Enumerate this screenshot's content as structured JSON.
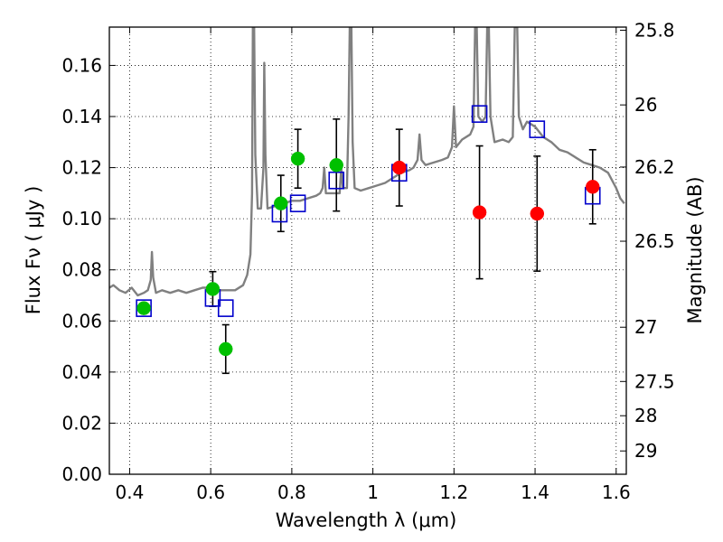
{
  "chart_data": {
    "type": "scatter",
    "title": "",
    "xlabel": "Wavelength  λ (μm)",
    "ylabel": "Flux  Fν  ( μJy )",
    "y2label": "Magnitude (AB)",
    "xlim": [
      0.35,
      1.625
    ],
    "ylim": [
      0.0,
      0.175
    ],
    "grid": true,
    "x_ticks": [
      {
        "value": 0.4,
        "label": "0.4"
      },
      {
        "value": 0.6,
        "label": "0.6"
      },
      {
        "value": 0.8,
        "label": "0.8"
      },
      {
        "value": 1.0,
        "label": "1"
      },
      {
        "value": 1.2,
        "label": "1.2"
      },
      {
        "value": 1.4,
        "label": "1.4"
      },
      {
        "value": 1.6,
        "label": "1.6"
      }
    ],
    "y_ticks": [
      {
        "value": 0.0,
        "label": "0.00"
      },
      {
        "value": 0.02,
        "label": "0.02"
      },
      {
        "value": 0.04,
        "label": "0.04"
      },
      {
        "value": 0.06,
        "label": "0.06"
      },
      {
        "value": 0.08,
        "label": "0.08"
      },
      {
        "value": 0.1,
        "label": "0.10"
      },
      {
        "value": 0.12,
        "label": "0.12"
      },
      {
        "value": 0.14,
        "label": "0.14"
      },
      {
        "value": 0.16,
        "label": "0.16"
      }
    ],
    "mag_ticks": [
      {
        "mag": 25.8,
        "label": "25.8"
      },
      {
        "mag": 26.0,
        "label": "26"
      },
      {
        "mag": 26.2,
        "label": "26.2"
      },
      {
        "mag": 26.5,
        "label": "26.5"
      },
      {
        "mag": 27.0,
        "label": "27"
      },
      {
        "mag": 27.5,
        "label": "27.5"
      },
      {
        "mag": 28.0,
        "label": "28"
      },
      {
        "mag": 29.0,
        "label": "29"
      }
    ],
    "series": [
      {
        "kind": "spectrum",
        "color": "#808080",
        "points": [
          [
            0.35,
            0.073
          ],
          [
            0.36,
            0.074
          ],
          [
            0.375,
            0.072
          ],
          [
            0.39,
            0.071
          ],
          [
            0.405,
            0.073
          ],
          [
            0.42,
            0.07
          ],
          [
            0.435,
            0.071
          ],
          [
            0.445,
            0.072
          ],
          [
            0.452,
            0.076
          ],
          [
            0.455,
            0.087
          ],
          [
            0.458,
            0.077
          ],
          [
            0.465,
            0.071
          ],
          [
            0.48,
            0.072
          ],
          [
            0.5,
            0.071
          ],
          [
            0.52,
            0.072
          ],
          [
            0.54,
            0.071
          ],
          [
            0.56,
            0.072
          ],
          [
            0.58,
            0.073
          ],
          [
            0.6,
            0.073
          ],
          [
            0.62,
            0.072
          ],
          [
            0.64,
            0.072
          ],
          [
            0.66,
            0.072
          ],
          [
            0.68,
            0.074
          ],
          [
            0.69,
            0.078
          ],
          [
            0.698,
            0.086
          ],
          [
            0.702,
            0.11
          ],
          [
            0.704,
            0.175
          ],
          [
            0.707,
            0.175
          ],
          [
            0.71,
            0.125
          ],
          [
            0.716,
            0.104
          ],
          [
            0.724,
            0.104
          ],
          [
            0.73,
            0.12
          ],
          [
            0.732,
            0.161
          ],
          [
            0.735,
            0.125
          ],
          [
            0.74,
            0.104
          ],
          [
            0.76,
            0.105
          ],
          [
            0.78,
            0.106
          ],
          [
            0.8,
            0.107
          ],
          [
            0.82,
            0.107
          ],
          [
            0.84,
            0.108
          ],
          [
            0.86,
            0.109
          ],
          [
            0.87,
            0.11
          ],
          [
            0.876,
            0.112
          ],
          [
            0.88,
            0.12
          ],
          [
            0.884,
            0.11
          ],
          [
            0.9,
            0.11
          ],
          [
            0.918,
            0.11
          ],
          [
            0.922,
            0.12
          ],
          [
            0.926,
            0.112
          ],
          [
            0.936,
            0.112
          ],
          [
            0.94,
            0.14
          ],
          [
            0.943,
            0.175
          ],
          [
            0.947,
            0.175
          ],
          [
            0.95,
            0.13
          ],
          [
            0.955,
            0.112
          ],
          [
            0.97,
            0.111
          ],
          [
            0.99,
            0.112
          ],
          [
            1.01,
            0.113
          ],
          [
            1.03,
            0.114
          ],
          [
            1.05,
            0.116
          ],
          [
            1.07,
            0.118
          ],
          [
            1.09,
            0.119
          ],
          [
            1.1,
            0.12
          ],
          [
            1.11,
            0.123
          ],
          [
            1.115,
            0.133
          ],
          [
            1.12,
            0.123
          ],
          [
            1.13,
            0.121
          ],
          [
            1.15,
            0.122
          ],
          [
            1.17,
            0.123
          ],
          [
            1.185,
            0.124
          ],
          [
            1.195,
            0.128
          ],
          [
            1.2,
            0.144
          ],
          [
            1.205,
            0.128
          ],
          [
            1.22,
            0.131
          ],
          [
            1.24,
            0.133
          ],
          [
            1.248,
            0.136
          ],
          [
            1.252,
            0.175
          ],
          [
            1.256,
            0.175
          ],
          [
            1.26,
            0.14
          ],
          [
            1.27,
            0.138
          ],
          [
            1.278,
            0.14
          ],
          [
            1.282,
            0.175
          ],
          [
            1.286,
            0.175
          ],
          [
            1.29,
            0.14
          ],
          [
            1.3,
            0.13
          ],
          [
            1.32,
            0.131
          ],
          [
            1.335,
            0.13
          ],
          [
            1.345,
            0.132
          ],
          [
            1.35,
            0.175
          ],
          [
            1.356,
            0.175
          ],
          [
            1.36,
            0.14
          ],
          [
            1.37,
            0.135
          ],
          [
            1.38,
            0.138
          ],
          [
            1.4,
            0.136
          ],
          [
            1.42,
            0.132
          ],
          [
            1.44,
            0.13
          ],
          [
            1.46,
            0.127
          ],
          [
            1.48,
            0.126
          ],
          [
            1.5,
            0.124
          ],
          [
            1.52,
            0.122
          ],
          [
            1.54,
            0.121
          ],
          [
            1.56,
            0.12
          ],
          [
            1.58,
            0.118
          ],
          [
            1.6,
            0.112
          ],
          [
            1.61,
            0.108
          ],
          [
            1.62,
            0.106
          ]
        ]
      },
      {
        "kind": "model",
        "marker": "open-square",
        "color": "#0000cc",
        "points": [
          [
            0.435,
            0.065
          ],
          [
            0.605,
            0.069
          ],
          [
            0.637,
            0.065
          ],
          [
            0.77,
            0.102
          ],
          [
            0.815,
            0.106
          ],
          [
            0.91,
            0.115
          ],
          [
            1.065,
            0.118
          ],
          [
            1.263,
            0.141
          ],
          [
            1.405,
            0.135
          ],
          [
            1.542,
            0.109
          ]
        ]
      },
      {
        "kind": "observed",
        "marker": "filled-circle",
        "color": "#00c000",
        "points": [
          {
            "x": 0.435,
            "y": 0.065,
            "err": null
          },
          {
            "x": 0.605,
            "y": 0.0725,
            "err": 0.0068
          },
          {
            "x": 0.637,
            "y": 0.049,
            "err": 0.0095
          },
          {
            "x": 0.773,
            "y": 0.106,
            "err": 0.011
          },
          {
            "x": 0.815,
            "y": 0.1235,
            "err": 0.0115
          },
          {
            "x": 0.91,
            "y": 0.121,
            "err": 0.018
          }
        ]
      },
      {
        "kind": "observed",
        "marker": "filled-circle",
        "color": "#ff0000",
        "points": [
          {
            "x": 1.065,
            "y": 0.12,
            "err": 0.015
          },
          {
            "x": 1.263,
            "y": 0.1025,
            "err": 0.026
          },
          {
            "x": 1.405,
            "y": 0.102,
            "err": 0.0225
          },
          {
            "x": 1.542,
            "y": 0.1125,
            "err": 0.0145
          }
        ]
      }
    ]
  }
}
